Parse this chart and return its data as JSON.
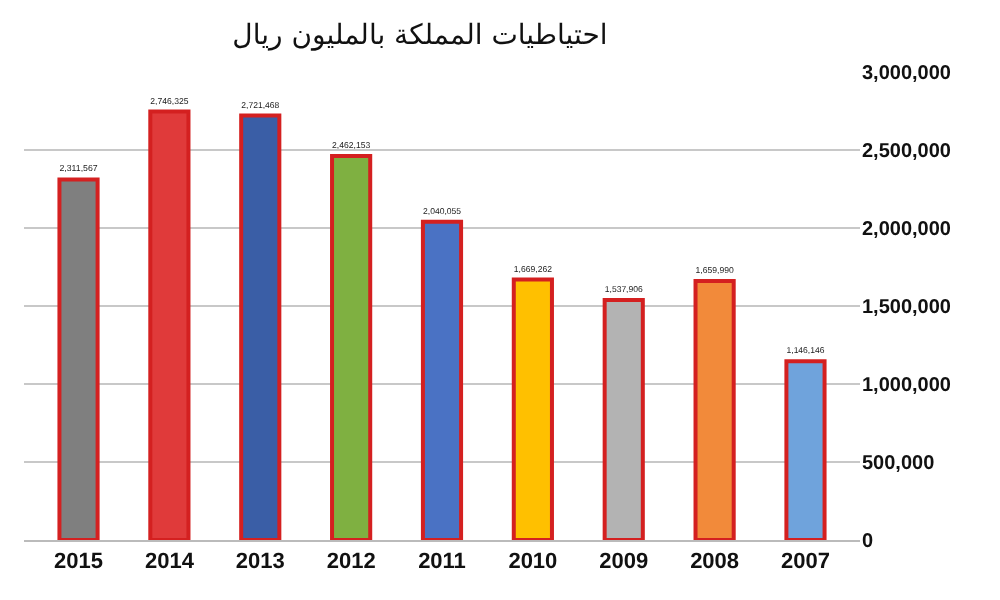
{
  "chart_data": {
    "type": "bar",
    "title": "احتياطيات المملكة بالمليون ريال",
    "categories": [
      "2015",
      "2014",
      "2013",
      "2012",
      "2011",
      "2010",
      "2009",
      "2008",
      "2007"
    ],
    "values": [
      2311567,
      2746325,
      2721468,
      2462153,
      2040055,
      1669262,
      1537906,
      1659990,
      1146146
    ],
    "colors": [
      "#7f7f7f",
      "#e03a3a",
      "#3a5ea6",
      "#7fb041",
      "#4a72c4",
      "#ffc000",
      "#b3b3b3",
      "#f28a3a",
      "#6fa3dc"
    ],
    "value_labels": [
      "2,311,567",
      "2,746,325",
      "2,721,468",
      "2,462,153",
      "2,040,055",
      "1,669,262",
      "1,537,906",
      "1,659,990",
      "1,146,146"
    ],
    "ylim": [
      0,
      3000000
    ],
    "yticks": [
      0,
      {
        "value": 500000,
        "label": "500,000"
      },
      {
        "value": 1000000,
        "label": "1,000,000"
      },
      {
        "value": 1500000,
        "label": "1,500,000"
      },
      {
        "value": 2000000,
        "label": "2,000,000"
      },
      {
        "value": 2500000,
        "label": "2,500,000"
      },
      {
        "value": 3000000,
        "label": "3,000,000"
      }
    ],
    "grid": "y",
    "legend": false
  }
}
